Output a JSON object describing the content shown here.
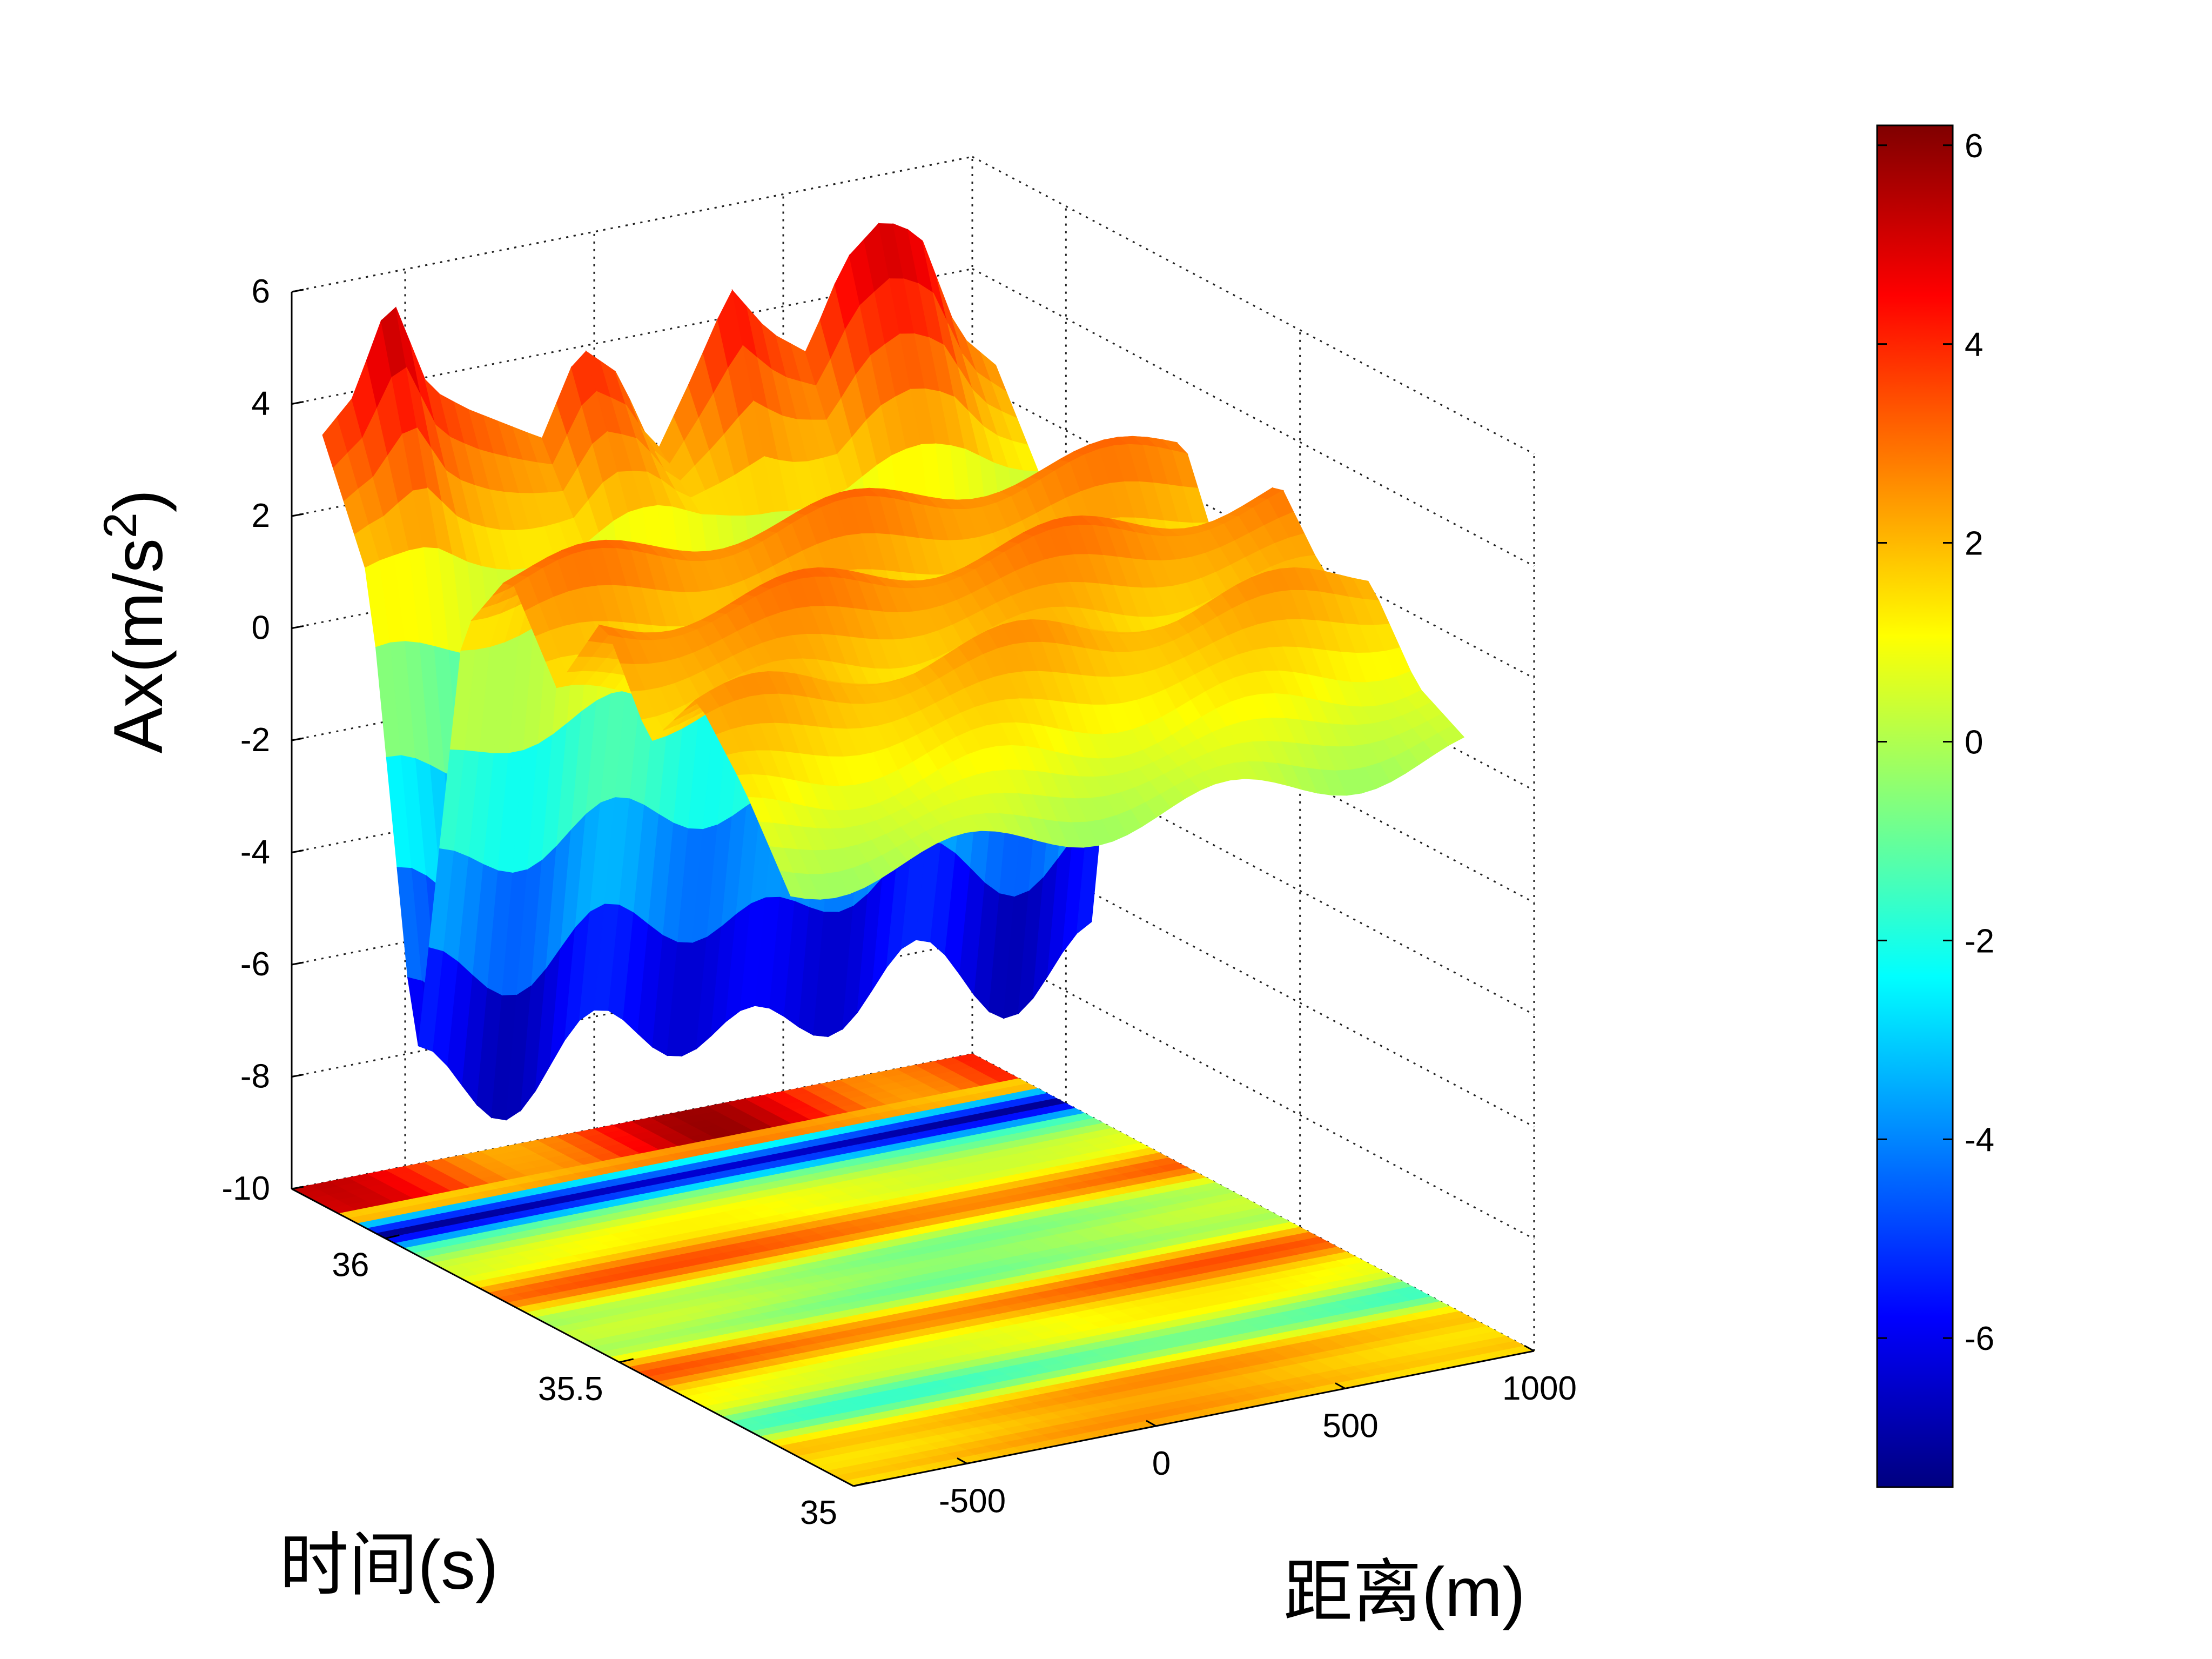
{
  "chart_data": {
    "type": "surface3d",
    "title": "",
    "xlabel": "距离(m)",
    "ylabel": "时间(s)",
    "zlabel_prefix": "Ax(m/s",
    "zlabel_sup": "2",
    "zlabel_suffix": ")",
    "xlim": [
      -800,
      1000
    ],
    "ylim": [
      35,
      36.2
    ],
    "zlim": [
      -10,
      6
    ],
    "x_ticks": [
      -500,
      0,
      500,
      1000
    ],
    "x_tick_labels": [
      "-500",
      "0",
      "500",
      "1000"
    ],
    "y_ticks": [
      35,
      35.5,
      36
    ],
    "y_tick_labels": [
      "35",
      "35.5",
      "36"
    ],
    "z_ticks": [
      -10,
      -8,
      -6,
      -4,
      -2,
      0,
      2,
      4,
      6
    ],
    "z_tick_labels": [
      "-10",
      "-8",
      "-6",
      "-4",
      "-2",
      "0",
      "2",
      "4",
      "6"
    ],
    "colorbar": {
      "colormap": "jet",
      "range": [
        -7.5,
        6.2
      ],
      "ticks": [
        -6,
        -4,
        -2,
        0,
        2,
        4,
        6
      ],
      "tick_labels": [
        "-6",
        "-4",
        "-2",
        "0",
        "2",
        "4",
        "6"
      ]
    },
    "time_samples": [
      36.15,
      36.05,
      35.95,
      35.85,
      35.75,
      35.65,
      35.55,
      35.45,
      35.35,
      35.25,
      35.15
    ],
    "ridge_profile": {
      "x": [
        -800,
        -700,
        -600,
        -500,
        -400,
        -300,
        -200,
        -100,
        0,
        100,
        200,
        300,
        400,
        500,
        600,
        700,
        800,
        900,
        1000
      ],
      "z_at_t_36.15": [
        3.5,
        4.2,
        5.9,
        4.1,
        3.6,
        3.2,
        2.8,
        4.3,
        3.7,
        2.1,
        3.4,
        4.8,
        3.9,
        3.4,
        4.9,
        5.5,
        5.1,
        3.2,
        2.5
      ]
    },
    "surface_levels": [
      4.0,
      1.2,
      -7.5,
      1.8,
      3.0,
      1.0,
      3.0,
      1.6,
      2.4,
      1.0,
      0.0
    ]
  }
}
